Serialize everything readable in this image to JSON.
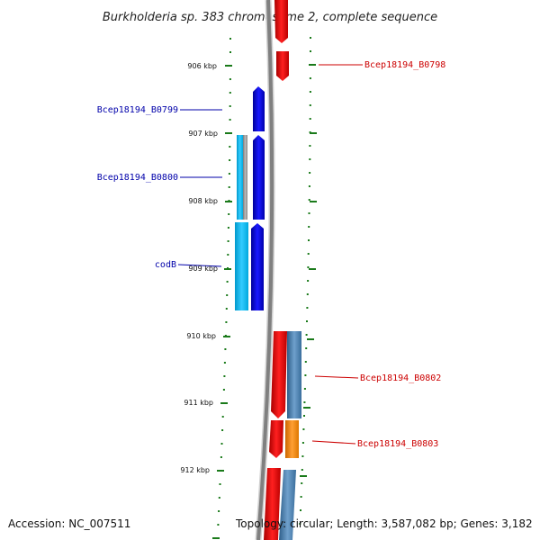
{
  "title": "Burkholderia sp. 383 chromosome 2, complete sequence",
  "accession": "Accession: NC_007511",
  "topology": "Topology: circular; Length: 3,587,082 bp; Genes: 3,182",
  "ticks": [
    "906 kbp",
    "907 kbp",
    "908 kbp",
    "909 kbp",
    "910 kbp",
    "911 kbp",
    "912 kbp"
  ],
  "gene_labels": {
    "b0798": "Bcep18194_B0798",
    "b0799": "Bcep18194_B0799",
    "b0800": "Bcep18194_B0800",
    "codb": "codB",
    "b0802": "Bcep18194_B0802",
    "b0803": "Bcep18194_B0803"
  },
  "colors": {
    "forward_gene": "#0000ee",
    "forward_gene_light": "#00bfff",
    "reverse_gene": "#ee0000",
    "reverse_gene_steel": "#4682b4",
    "reverse_gene_orange": "#ff8c00",
    "backbone": "#808080",
    "tick": "#1a7a1a",
    "forward_label": "#0000aa",
    "reverse_label": "#cc0000"
  }
}
